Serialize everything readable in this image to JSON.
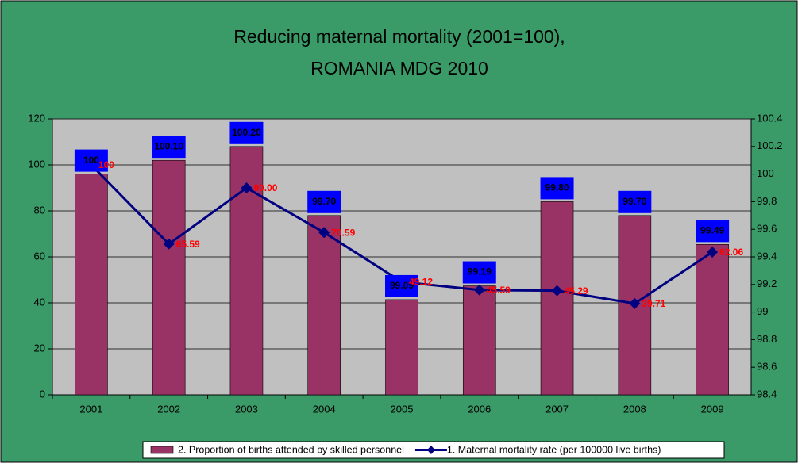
{
  "chart_data": {
    "type": "bar",
    "title": "Reducing maternal mortality  (2001=100),",
    "subtitle": "ROMANIA MDG 2010",
    "categories": [
      "2001",
      "2002",
      "2003",
      "2004",
      "2005",
      "2006",
      "2007",
      "2008",
      "2009"
    ],
    "series": [
      {
        "name": "2. Proportion of births attended by skilled personnel",
        "type": "bar",
        "axis": "y2",
        "color": "#993366",
        "values": [
          100,
          100.1,
          100.2,
          99.7,
          99.09,
          99.19,
          99.8,
          99.7,
          99.49
        ],
        "value_labels": [
          "100",
          "100.10",
          "100.20",
          "99.70",
          "99.09",
          "99.19",
          "99.80",
          "99.70",
          "99.49"
        ]
      },
      {
        "name": "1. Maternal mortality rate (per 100000 live births)",
        "type": "line",
        "axis": "y",
        "color": "#000080",
        "values": [
          100,
          65.59,
          90,
          70.59,
          49.12,
          45.59,
          45.29,
          39.71,
          62.06
        ],
        "value_labels": [
          "100",
          "65.59",
          "90.00",
          "70.59",
          "49.12",
          "45.59",
          "45.29",
          "39.71",
          "62.06"
        ]
      }
    ],
    "ylim": [
      0,
      120
    ],
    "yticks": [
      0,
      20,
      40,
      60,
      80,
      100,
      120
    ],
    "y2lim": [
      98.4,
      100.4
    ],
    "y2ticks": [
      98.4,
      98.6,
      98.8,
      99,
      99.2,
      99.4,
      99.6,
      99.8,
      100,
      100.2,
      100.4
    ],
    "grid": true,
    "legend": "bottom"
  }
}
